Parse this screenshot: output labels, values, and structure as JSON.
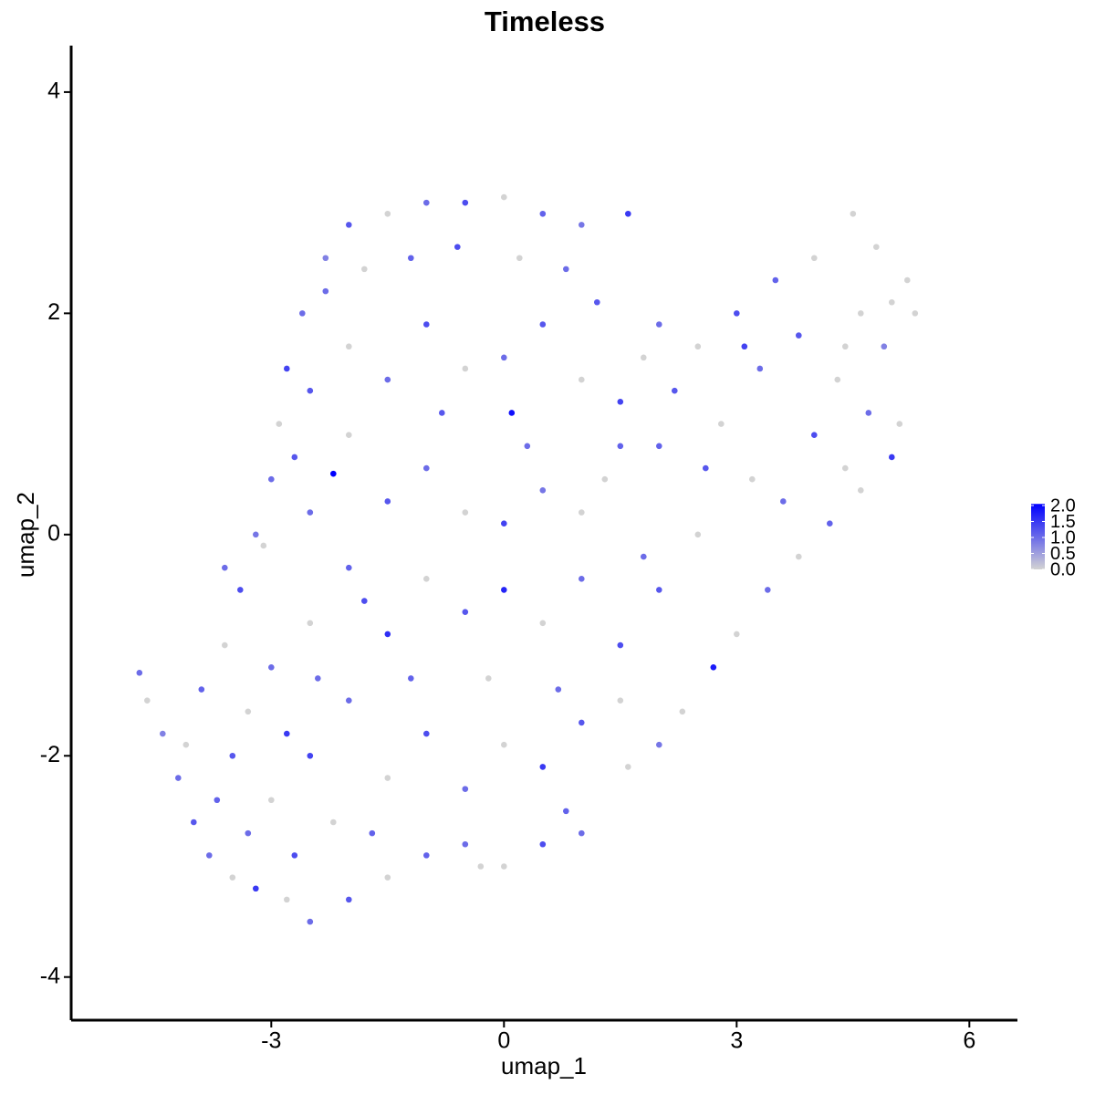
{
  "chart_data": {
    "type": "scatter",
    "title": "Timeless",
    "x_label": "umap_1",
    "y_label": "umap_2",
    "x": [
      -4.7,
      -4.6,
      -4.4,
      -4.2,
      -4.0,
      -3.8,
      -3.5,
      -3.2,
      -2.8,
      -2.5,
      -2.0,
      -1.5,
      -1.0,
      -0.5,
      0,
      0.5,
      1.0,
      -3.9,
      -3.6,
      -3.4,
      -3.2,
      -3.0,
      -2.9,
      -2.8,
      -2.6,
      -2.3,
      -2.0,
      -1.5,
      -1.0,
      -0.5,
      0,
      0.5,
      1.0,
      1.6,
      -2.2,
      0.1,
      -3.5,
      -3.0,
      -2.5,
      -2.0,
      -1.5,
      -1.0,
      -0.5,
      0,
      0.5,
      1.0,
      1.5,
      -3.0,
      -2.5,
      -2.0,
      -1.5,
      -1.0,
      -0.5,
      0,
      0.5,
      1.0,
      1.5,
      -2.5,
      -2.0,
      -1.5,
      -1.0,
      -0.5,
      0,
      0.5,
      1.0,
      1.5,
      -2.5,
      -2.0,
      -1.5,
      -1.0,
      -0.5,
      0,
      0.5,
      1.0,
      1.5,
      -2.3,
      -1.8,
      -1.2,
      -0.6,
      0.2,
      0.8,
      1.2,
      2.0,
      2.5,
      3.0,
      3.5,
      4.0,
      4.5,
      4.8,
      5.2,
      5.3,
      4.9,
      2.2,
      2.8,
      3.3,
      3.8,
      4.3,
      4.7,
      5.1,
      5.0,
      4.6,
      4.2,
      3.8,
      3.4,
      3.0,
      2.7,
      2.3,
      2.0,
      1.6,
      2.0,
      2.5,
      2.0,
      3.2,
      4.0,
      4.4,
      3.6,
      2.6,
      -4.1,
      -3.7,
      -3.3,
      -2.7,
      -2.2,
      -1.7,
      -3.3,
      -2.8,
      -3.6,
      -3.1,
      -2.7,
      -2.4,
      -1.2,
      -0.2,
      0.7,
      -0.8,
      0.3,
      -1.8,
      1.3,
      1.8,
      -0.3,
      0.8,
      4.6,
      4.4,
      5.0,
      3.1,
      1.8
    ],
    "y": [
      -1.25,
      -1.5,
      -1.8,
      -2.2,
      -2.6,
      -2.9,
      -3.1,
      -3.2,
      -3.3,
      -3.5,
      -3.3,
      -3.1,
      -2.9,
      -2.8,
      -3.0,
      -2.8,
      -2.7,
      -1.4,
      -1.0,
      -0.5,
      0,
      0.5,
      1.0,
      1.5,
      2.0,
      2.5,
      2.8,
      2.9,
      3.0,
      3.0,
      3.05,
      2.9,
      2.8,
      2.9,
      0.55,
      1.1,
      -2.0,
      -2.4,
      -2.0,
      -1.5,
      -2.2,
      -1.8,
      -2.3,
      -1.9,
      -2.1,
      -1.7,
      -1.5,
      -1.2,
      -0.8,
      -0.3,
      -0.9,
      -0.4,
      -0.7,
      -0.5,
      -0.8,
      -0.4,
      -1.0,
      0.2,
      0.9,
      0.3,
      0.6,
      0.2,
      0.1,
      0.4,
      0.2,
      0.8,
      1.3,
      1.7,
      1.4,
      1.9,
      1.5,
      1.6,
      1.9,
      1.4,
      1.2,
      2.2,
      2.4,
      2.5,
      2.6,
      2.5,
      2.4,
      2.1,
      1.9,
      1.7,
      2.0,
      2.3,
      2.5,
      2.9,
      2.6,
      2.3,
      2.0,
      1.7,
      1.3,
      1.0,
      1.5,
      1.8,
      1.4,
      1.1,
      1.0,
      0.7,
      0.4,
      0.1,
      -0.2,
      -0.5,
      -0.9,
      -1.2,
      -1.6,
      -1.9,
      -2.1,
      -0.5,
      0.0,
      0.8,
      0.5,
      0.9,
      0.6,
      0.3,
      0.6,
      -1.9,
      -2.4,
      -2.7,
      -2.9,
      -2.6,
      -2.7,
      -1.6,
      -1.8,
      -0.3,
      -0.1,
      0.7,
      -1.3,
      -1.3,
      -1.3,
      -1.4,
      1.1,
      0.8,
      -0.6,
      0.5,
      -0.2,
      -3.0,
      -2.5,
      2.0,
      1.7,
      2.1,
      1.7,
      1.6
    ],
    "values": [
      1.0,
      0,
      0.8,
      1.0,
      1.2,
      1.0,
      0,
      1.5,
      0,
      1.0,
      1.2,
      0,
      1.1,
      1.0,
      0,
      1.3,
      1.0,
      1.1,
      0,
      1.3,
      0.9,
      1.0,
      0,
      1.4,
      1.0,
      0.8,
      1.2,
      0,
      1.0,
      1.3,
      0,
      1.1,
      0.9,
      1.5,
      2.05,
      1.9,
      1.2,
      0,
      1.4,
      1.0,
      0,
      1.3,
      1.0,
      0,
      1.5,
      1.2,
      0,
      1.0,
      0,
      1.1,
      1.6,
      0,
      1.2,
      1.7,
      0,
      1.0,
      1.3,
      1.0,
      0,
      1.2,
      1.0,
      0,
      1.4,
      0.9,
      0,
      1.1,
      1.2,
      0,
      1.0,
      1.3,
      0,
      1.0,
      1.2,
      0,
      1.4,
      1.0,
      0,
      1.1,
      1.3,
      0,
      1.0,
      1.2,
      1.0,
      0,
      1.3,
      1.1,
      0,
      0,
      0,
      0,
      0,
      0.8,
      1.2,
      0,
      1.0,
      1.2,
      0,
      1.0,
      0,
      1.5,
      0,
      1.1,
      0,
      1.0,
      0,
      1.8,
      0,
      0.9,
      0,
      1.2,
      0,
      1.1,
      0,
      1.3,
      0,
      1.0,
      1.2,
      0,
      1.1,
      1.0,
      1.3,
      0,
      1.1,
      0,
      1.5,
      1.0,
      0,
      1.2,
      1.0,
      1.1,
      0,
      1.0,
      1.2,
      1.0,
      1.3,
      0,
      1.0,
      0,
      1.1,
      0,
      0,
      0,
      1.4,
      0
    ],
    "low_color": "#d3d3d3",
    "high_color": "#0000ff",
    "clim": [
      0,
      2.05
    ],
    "xlim": [
      -5.58,
      6.62
    ],
    "ylim": [
      -4.39,
      4.42
    ],
    "xticks": [
      -3,
      0,
      3,
      6
    ],
    "yticks": [
      -4,
      -2,
      0,
      2,
      4
    ],
    "legend_ticks": [
      {
        "value": 0,
        "label": "0.0"
      },
      {
        "value": 0.5,
        "label": "0.5"
      },
      {
        "value": 1,
        "label": "1.0"
      },
      {
        "value": 1.5,
        "label": "1.5"
      },
      {
        "value": 2,
        "label": "2.0"
      }
    ],
    "grid": false
  }
}
